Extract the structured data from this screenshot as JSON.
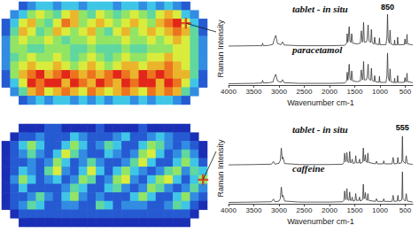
{
  "chart_data": [
    {
      "type": "heatmap",
      "tick_labels": false,
      "value_range": [
        0,
        9
      ],
      "marker_cell": [
        21,
        2
      ],
      "cells": [
        [
          null,
          null,
          1,
          2,
          3,
          3,
          2,
          3,
          3,
          2,
          3,
          3,
          3,
          2,
          3,
          3,
          2,
          3,
          2,
          3,
          2,
          1,
          null,
          null
        ],
        [
          null,
          2,
          3,
          5,
          6,
          5,
          4,
          6,
          7,
          5,
          4,
          6,
          5,
          4,
          5,
          6,
          5,
          4,
          6,
          7,
          6,
          3,
          2,
          null
        ],
        [
          1,
          3,
          6,
          7,
          5,
          4,
          6,
          8,
          7,
          5,
          6,
          7,
          6,
          5,
          6,
          7,
          6,
          5,
          7,
          8,
          9,
          6,
          3,
          1
        ],
        [
          1,
          4,
          7,
          6,
          4,
          5,
          7,
          6,
          5,
          6,
          7,
          5,
          4,
          6,
          7,
          5,
          6,
          7,
          6,
          7,
          8,
          7,
          4,
          1
        ],
        [
          2,
          5,
          6,
          5,
          5,
          6,
          5,
          4,
          5,
          5,
          6,
          5,
          5,
          5,
          6,
          5,
          5,
          6,
          5,
          6,
          7,
          6,
          4,
          2
        ],
        [
          2,
          5,
          5,
          4,
          4,
          5,
          5,
          5,
          4,
          4,
          5,
          4,
          4,
          4,
          5,
          4,
          4,
          5,
          5,
          5,
          6,
          6,
          4,
          2
        ],
        [
          2,
          4,
          5,
          6,
          5,
          5,
          6,
          5,
          4,
          5,
          6,
          5,
          4,
          5,
          6,
          5,
          5,
          6,
          6,
          7,
          6,
          6,
          4,
          2
        ],
        [
          2,
          5,
          6,
          7,
          6,
          6,
          7,
          6,
          5,
          6,
          7,
          6,
          5,
          6,
          7,
          7,
          6,
          7,
          7,
          8,
          7,
          6,
          4,
          2
        ],
        [
          1,
          5,
          7,
          8,
          9,
          7,
          8,
          9,
          8,
          7,
          8,
          7,
          8,
          9,
          8,
          7,
          9,
          8,
          9,
          8,
          7,
          7,
          4,
          1
        ],
        [
          1,
          3,
          6,
          9,
          8,
          9,
          9,
          7,
          9,
          8,
          7,
          9,
          8,
          7,
          9,
          8,
          9,
          9,
          7,
          9,
          8,
          6,
          3,
          1
        ],
        [
          null,
          2,
          4,
          7,
          8,
          6,
          7,
          8,
          7,
          6,
          8,
          7,
          6,
          7,
          8,
          7,
          6,
          8,
          7,
          8,
          7,
          4,
          2,
          null
        ],
        [
          null,
          null,
          1,
          2,
          3,
          2,
          3,
          3,
          2,
          3,
          2,
          3,
          2,
          3,
          3,
          2,
          3,
          2,
          3,
          3,
          2,
          1,
          null,
          null
        ]
      ]
    },
    {
      "type": "heatmap",
      "tick_labels": false,
      "value_range": [
        0,
        9
      ],
      "marker_cell": [
        23,
        6
      ],
      "cells": [
        [
          null,
          null,
          0,
          0,
          0,
          1,
          1,
          0,
          0,
          0,
          0,
          1,
          0,
          0,
          0,
          0,
          1,
          0,
          0,
          0,
          0,
          0,
          null,
          null
        ],
        [
          null,
          0,
          1,
          1,
          2,
          1,
          1,
          1,
          3,
          2,
          1,
          1,
          1,
          2,
          3,
          1,
          1,
          2,
          3,
          2,
          1,
          1,
          0,
          null
        ],
        [
          0,
          1,
          3,
          5,
          3,
          1,
          1,
          3,
          5,
          3,
          1,
          2,
          4,
          3,
          1,
          1,
          3,
          5,
          4,
          2,
          1,
          2,
          1,
          0
        ],
        [
          0,
          1,
          2,
          4,
          2,
          1,
          3,
          6,
          4,
          2,
          1,
          1,
          3,
          2,
          1,
          2,
          5,
          6,
          3,
          1,
          2,
          4,
          2,
          0
        ],
        [
          0,
          1,
          1,
          2,
          1,
          2,
          5,
          3,
          1,
          2,
          4,
          2,
          1,
          1,
          2,
          4,
          6,
          3,
          1,
          1,
          3,
          5,
          3,
          1
        ],
        [
          0,
          1,
          3,
          2,
          1,
          4,
          6,
          2,
          1,
          3,
          6,
          3,
          1,
          3,
          5,
          3,
          2,
          1,
          2,
          4,
          5,
          2,
          4,
          3
        ],
        [
          0,
          2,
          5,
          3,
          1,
          2,
          3,
          1,
          2,
          5,
          4,
          1,
          2,
          5,
          6,
          2,
          1,
          3,
          5,
          6,
          3,
          1,
          3,
          5
        ],
        [
          0,
          1,
          3,
          1,
          1,
          1,
          1,
          2,
          4,
          3,
          1,
          1,
          3,
          4,
          2,
          1,
          2,
          5,
          4,
          2,
          1,
          2,
          4,
          2
        ],
        [
          0,
          1,
          1,
          2,
          4,
          2,
          1,
          3,
          5,
          2,
          1,
          2,
          1,
          1,
          1,
          3,
          5,
          3,
          1,
          1,
          3,
          5,
          2,
          1
        ],
        [
          0,
          1,
          2,
          4,
          3,
          1,
          1,
          2,
          2,
          1,
          1,
          4,
          3,
          1,
          2,
          2,
          2,
          1,
          1,
          2,
          4,
          3,
          1,
          0
        ],
        [
          null,
          0,
          1,
          1,
          1,
          1,
          1,
          1,
          1,
          1,
          1,
          1,
          1,
          1,
          1,
          1,
          1,
          1,
          1,
          1,
          1,
          1,
          0,
          null
        ],
        [
          null,
          null,
          0,
          0,
          0,
          0,
          0,
          0,
          0,
          0,
          0,
          0,
          0,
          0,
          0,
          0,
          0,
          0,
          0,
          0,
          0,
          0,
          null,
          null
        ]
      ]
    },
    {
      "type": "line",
      "x_label": "Wavenumber cm-1",
      "y_label": "Raman Intensity",
      "tick_labels": "x",
      "xlim": [
        4000,
        350
      ],
      "xticks": [
        4000,
        3500,
        3000,
        2500,
        2000,
        1500,
        1000,
        500
      ],
      "ylim": [
        0,
        1
      ],
      "annotations": [
        {
          "text": "850",
          "x": 850
        }
      ],
      "x": [
        4000,
        3500,
        3340,
        3325,
        3310,
        3200,
        3120,
        3100,
        3065,
        3030,
        2960,
        2930,
        2900,
        2600,
        2000,
        1700,
        1660,
        1650,
        1635,
        1620,
        1610,
        1595,
        1575,
        1560,
        1540,
        1450,
        1390,
        1370,
        1350,
        1338,
        1325,
        1310,
        1265,
        1250,
        1235,
        1220,
        1185,
        1170,
        1155,
        1120,
        1105,
        1090,
        1020,
        1010,
        1000,
        880,
        862,
        850,
        838,
        815,
        800,
        785,
        720,
        710,
        700,
        660,
        650,
        640,
        520,
        505,
        490,
        475,
        465,
        455,
        380,
        350
      ],
      "series": [
        {
          "name": "tablet - in situ",
          "color": "#333333",
          "values": [
            0.05,
            0.06,
            0.06,
            0.13,
            0.06,
            0.07,
            0.1,
            0.22,
            0.35,
            0.12,
            0.09,
            0.17,
            0.08,
            0.06,
            0.06,
            0.07,
            0.13,
            0.4,
            0.16,
            0.42,
            0.6,
            0.2,
            0.15,
            0.4,
            0.13,
            0.11,
            0.13,
            0.48,
            0.16,
            0.22,
            0.72,
            0.16,
            0.17,
            0.32,
            0.65,
            0.2,
            0.15,
            0.52,
            0.15,
            0.1,
            0.3,
            0.11,
            0.09,
            0.28,
            0.09,
            0.09,
            0.32,
            0.95,
            0.26,
            0.13,
            0.5,
            0.11,
            0.08,
            0.22,
            0.08,
            0.09,
            0.3,
            0.09,
            0.09,
            0.25,
            0.1,
            0.13,
            0.38,
            0.11,
            0.09,
            0.08
          ]
        },
        {
          "name": "paracetamol",
          "color": "#333333",
          "values": [
            0.04,
            0.05,
            0.06,
            0.14,
            0.06,
            0.07,
            0.09,
            0.2,
            0.32,
            0.12,
            0.08,
            0.16,
            0.07,
            0.05,
            0.05,
            0.06,
            0.12,
            0.38,
            0.15,
            0.4,
            0.62,
            0.2,
            0.14,
            0.42,
            0.12,
            0.1,
            0.12,
            0.45,
            0.15,
            0.2,
            0.7,
            0.15,
            0.16,
            0.3,
            0.62,
            0.18,
            0.14,
            0.5,
            0.14,
            0.1,
            0.28,
            0.1,
            0.08,
            0.26,
            0.08,
            0.08,
            0.3,
            0.95,
            0.25,
            0.12,
            0.48,
            0.1,
            0.07,
            0.2,
            0.07,
            0.08,
            0.28,
            0.08,
            0.08,
            0.22,
            0.09,
            0.12,
            0.35,
            0.1,
            0.08,
            0.07
          ]
        }
      ]
    },
    {
      "type": "line",
      "x_label": "Wavenumber cm-1",
      "y_label": "Raman Intensity",
      "tick_labels": "x",
      "xlim": [
        4000,
        350
      ],
      "xticks": [
        4000,
        3500,
        3000,
        2500,
        2000,
        1500,
        1000,
        500
      ],
      "ylim": [
        0,
        1
      ],
      "annotations": [
        {
          "text": "555",
          "x": 555
        }
      ],
      "x": [
        4000,
        3500,
        3150,
        3110,
        3080,
        3000,
        2975,
        2955,
        2935,
        2920,
        2890,
        2600,
        2000,
        1740,
        1715,
        1700,
        1680,
        1668,
        1655,
        1640,
        1615,
        1600,
        1585,
        1565,
        1550,
        1535,
        1495,
        1480,
        1465,
        1420,
        1405,
        1390,
        1345,
        1330,
        1315,
        1300,
        1290,
        1280,
        1255,
        1240,
        1225,
        1090,
        1070,
        1050,
        940,
        925,
        910,
        760,
        740,
        720,
        660,
        645,
        630,
        575,
        565,
        555,
        545,
        500,
        480,
        460,
        380,
        350
      ],
      "series": [
        {
          "name": "tablet - in situ",
          "color": "#333333",
          "values": [
            0.05,
            0.06,
            0.07,
            0.15,
            0.07,
            0.1,
            0.18,
            0.55,
            0.22,
            0.28,
            0.09,
            0.06,
            0.06,
            0.07,
            0.12,
            0.4,
            0.14,
            0.18,
            0.42,
            0.14,
            0.12,
            0.45,
            0.12,
            0.12,
            0.22,
            0.09,
            0.11,
            0.32,
            0.11,
            0.11,
            0.22,
            0.09,
            0.13,
            0.55,
            0.16,
            0.22,
            0.35,
            0.16,
            0.12,
            0.4,
            0.12,
            0.08,
            0.16,
            0.08,
            0.08,
            0.17,
            0.08,
            0.08,
            0.27,
            0.08,
            0.09,
            0.27,
            0.09,
            0.11,
            0.22,
            0.9,
            0.16,
            0.09,
            0.32,
            0.09,
            0.07,
            0.06
          ]
        },
        {
          "name": "caffeine",
          "color": "#333333",
          "values": [
            0.04,
            0.05,
            0.06,
            0.14,
            0.06,
            0.08,
            0.15,
            0.5,
            0.2,
            0.25,
            0.08,
            0.05,
            0.05,
            0.06,
            0.1,
            0.38,
            0.12,
            0.15,
            0.45,
            0.12,
            0.1,
            0.35,
            0.1,
            0.1,
            0.2,
            0.08,
            0.1,
            0.3,
            0.1,
            0.1,
            0.2,
            0.08,
            0.12,
            0.58,
            0.15,
            0.2,
            0.33,
            0.15,
            0.1,
            0.3,
            0.1,
            0.07,
            0.15,
            0.07,
            0.07,
            0.15,
            0.07,
            0.07,
            0.25,
            0.07,
            0.08,
            0.25,
            0.08,
            0.1,
            0.2,
            0.95,
            0.15,
            0.08,
            0.3,
            0.08,
            0.06,
            0.05
          ]
        }
      ]
    }
  ]
}
